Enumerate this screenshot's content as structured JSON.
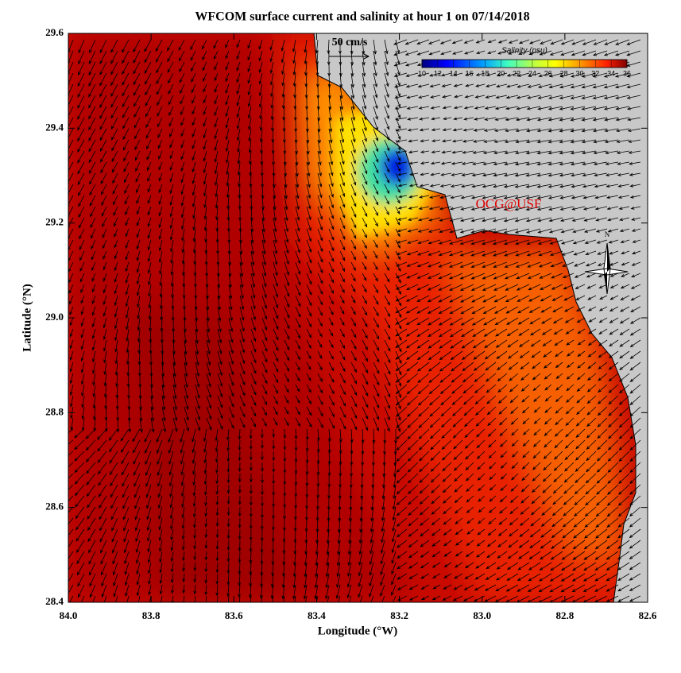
{
  "chart_data": {
    "type": "map",
    "title": "WFCOM surface current and salinity at hour 1 on 07/14/2018",
    "x_label": "Longitude (°W)",
    "y_label": "Latitude (°N)",
    "xlim": [
      84.0,
      82.6
    ],
    "xticks": [
      {
        "value": 84,
        "label": "84.0"
      },
      83.8,
      83.6,
      83.4,
      83.2,
      {
        "value": 83,
        "label": "83.0"
      },
      82.8,
      82.6
    ],
    "ylim": [
      28.4,
      29.6
    ],
    "yticks": [
      28.4,
      28.6,
      28.8,
      {
        "value": 29,
        "label": "29.0"
      },
      29.2,
      29.4,
      29.6
    ],
    "colorbar": {
      "title": "Salinity (psu)",
      "lim": [
        10,
        36
      ],
      "ticks": [
        10,
        12,
        14,
        16,
        18,
        20,
        22,
        24,
        26,
        28,
        30,
        32,
        34,
        36
      ]
    },
    "annotations": [
      "50 cm/s",
      "OCG@USF",
      "N"
    ]
  }
}
